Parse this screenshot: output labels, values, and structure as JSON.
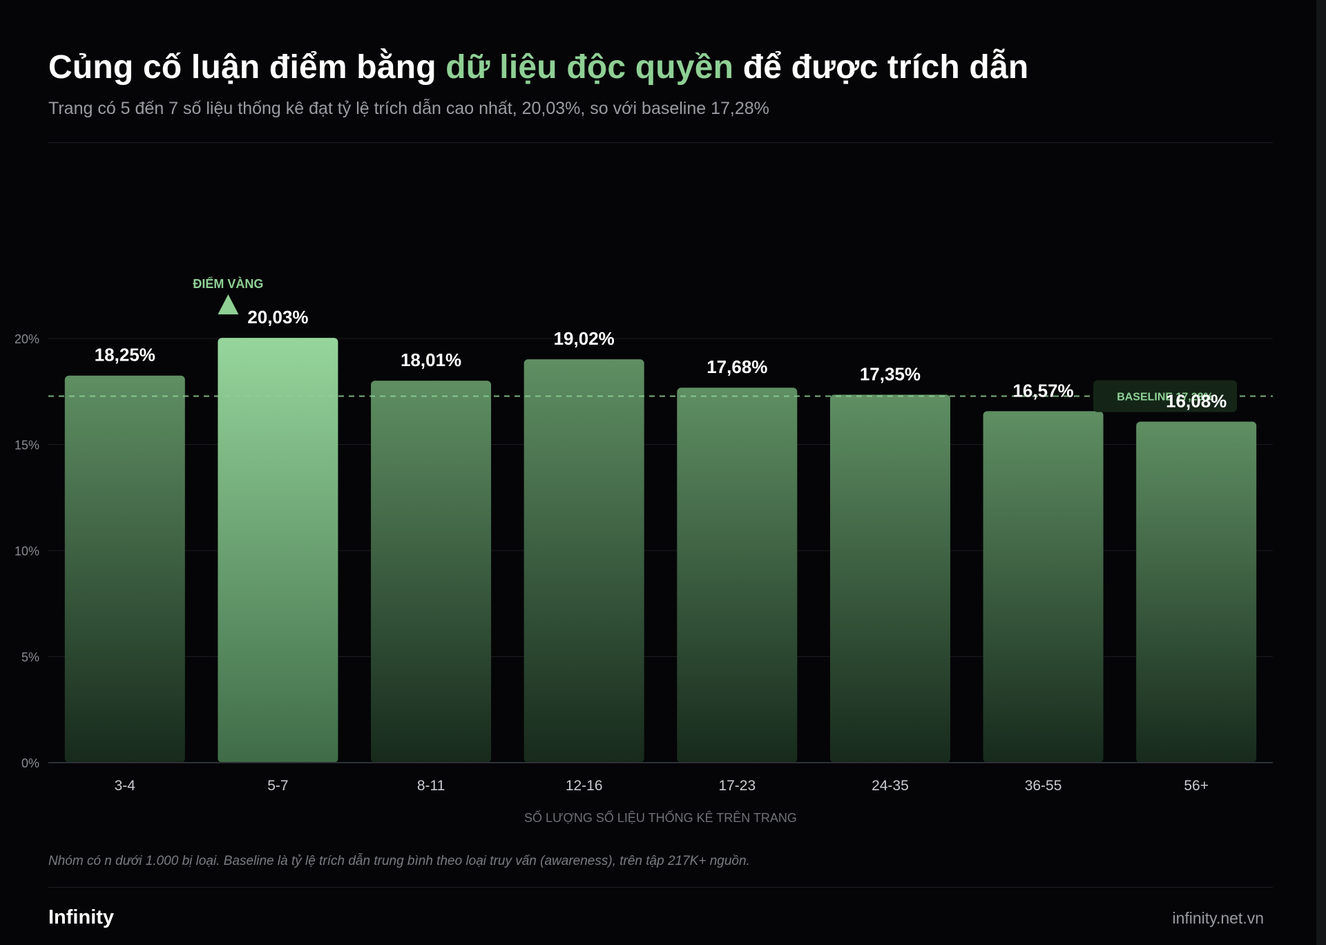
{
  "header": {
    "title_before": "Củng cố luận điểm bằng ",
    "title_highlight": "dữ liệu độc quyền",
    "title_after": " để được trích dẫn",
    "subtitle": "Trang có 5 đến 7 số liệu thống kê đạt tỷ lệ trích dẫn cao nhất, 20,03%, so với baseline 17,28%"
  },
  "chart_data": {
    "type": "bar",
    "categories": [
      "3-4",
      "5-7",
      "8-11",
      "12-16",
      "17-23",
      "24-35",
      "36-55",
      "56+"
    ],
    "values": [
      18.25,
      20.03,
      18.01,
      19.02,
      17.68,
      17.35,
      16.57,
      16.08
    ],
    "data_labels": [
      "18,25%",
      "20,03%",
      "18,01%",
      "19,02%",
      "17,68%",
      "17,35%",
      "16,57%",
      "16,08%"
    ],
    "ylim": [
      0,
      20
    ],
    "yticks": [
      0,
      5,
      10,
      15,
      20
    ],
    "ytick_labels": [
      "0%",
      "5%",
      "10%",
      "15%",
      "20%"
    ],
    "xlabel": "SỐ LƯỢNG SỐ LIỆU THỐNG KÊ TRÊN TRANG",
    "ylabel": "",
    "grid": true,
    "baseline": {
      "value": 17.28,
      "label": "BASELINE 17,28%"
    },
    "highlight": {
      "category": "5-7",
      "label": "ĐIỂM VÀNG"
    },
    "colors": {
      "bar_top": "#5f8f63",
      "bar_bottom": "#172a1c",
      "highlight_top": "#96d69c",
      "highlight_bottom": "#3f6c47",
      "accent": "#8fd095",
      "grid": "#1a1c20",
      "axis": "#2e3036",
      "tick_text": "#8a8c92",
      "category_text": "#c9cbd0",
      "baseline_box": "#142518"
    }
  },
  "footer": {
    "note": "Nhóm có n dưới 1.000 bị loại. Baseline là tỷ lệ trích dẫn trung bình theo loại truy vấn (awareness), trên tập 217K+ nguồn.",
    "brand": "Infinity",
    "site": "infinity.net.vn"
  }
}
